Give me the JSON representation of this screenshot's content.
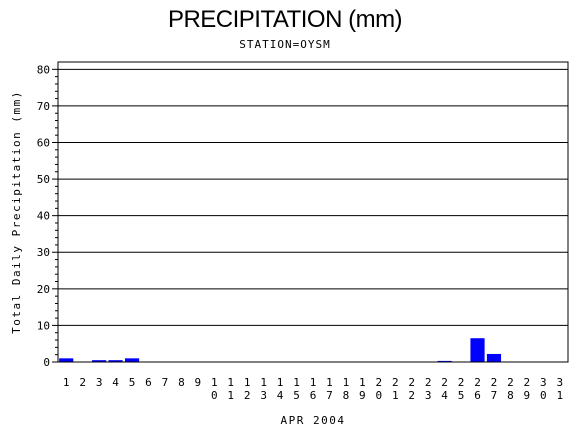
{
  "chart_data": {
    "type": "bar",
    "title": "PRECIPITATION (mm)",
    "subtitle": "STATION=OYSM",
    "xlabel": "APR 2004",
    "ylabel": "Total Daily Precipitation (mm)",
    "ylim": [
      0,
      82
    ],
    "yticks": [
      0,
      10,
      20,
      30,
      40,
      50,
      60,
      70,
      80
    ],
    "grid": true,
    "bar_color": "#0000ff",
    "categories": [
      "1",
      "2",
      "3",
      "4",
      "5",
      "6",
      "7",
      "8",
      "9",
      "10",
      "11",
      "12",
      "13",
      "14",
      "15",
      "16",
      "17",
      "18",
      "19",
      "20",
      "21",
      "22",
      "23",
      "24",
      "25",
      "26",
      "27",
      "28",
      "29",
      "30",
      "31"
    ],
    "values": [
      1.0,
      0,
      0.5,
      0.5,
      1.0,
      0,
      0,
      0,
      0,
      0,
      0,
      0,
      0,
      0,
      0,
      0,
      0,
      0,
      0,
      0,
      0,
      0,
      0,
      0.3,
      0,
      6.5,
      2.2,
      0,
      0,
      0,
      0
    ]
  }
}
